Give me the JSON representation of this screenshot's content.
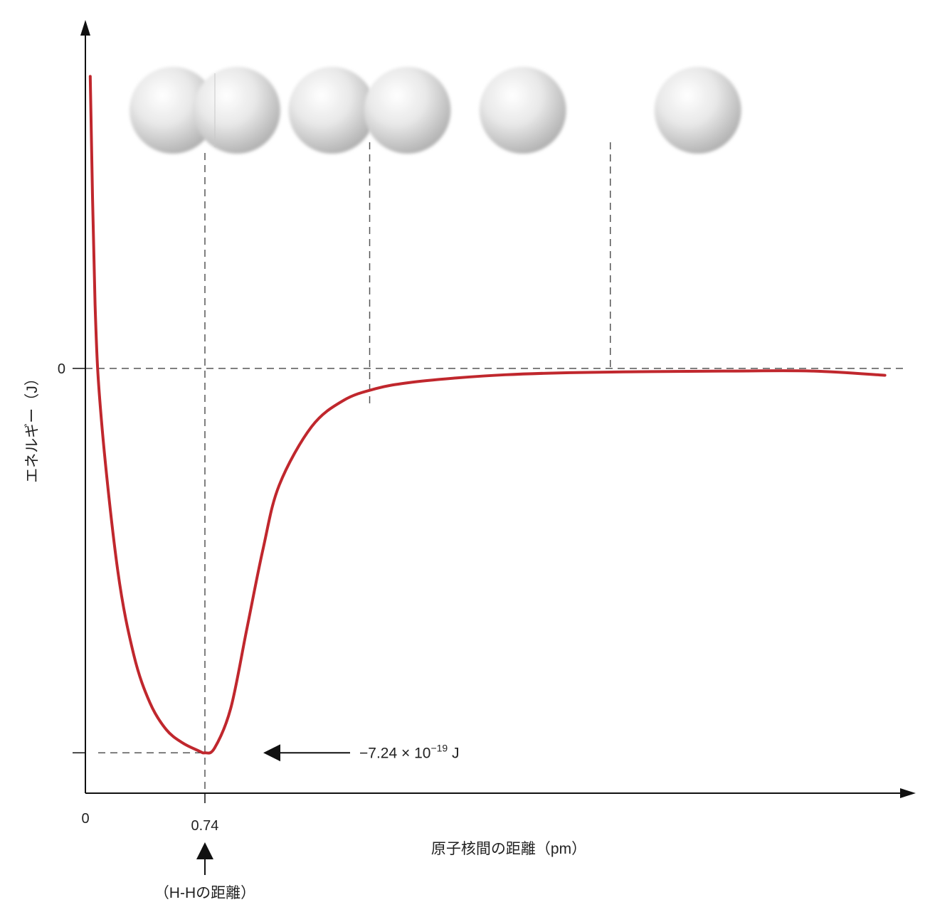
{
  "chart_data": {
    "type": "line",
    "title": "",
    "xlabel": "原子核間の距離（pm）",
    "ylabel": "エネルギー（J）",
    "x_ticks": [
      "0",
      "0.74"
    ],
    "y_ticks": [
      "0"
    ],
    "xlim": [
      0,
      5.0
    ],
    "ylim": [
      -8.0,
      6.0
    ],
    "grid": false,
    "legend": "none",
    "series": [
      {
        "color": "#c0272d",
        "x": [
          0.03,
          0.06,
          0.1,
          0.2,
          0.3,
          0.4,
          0.5,
          0.6,
          0.7,
          0.74,
          0.8,
          0.9,
          1.0,
          1.1,
          1.2,
          1.4,
          1.6,
          1.8,
          2.0,
          2.3,
          2.6,
          3.0,
          3.5,
          4.0,
          4.5,
          4.95
        ],
        "y": [
          5.5,
          1.2,
          -1.0,
          -3.8,
          -5.4,
          -6.3,
          -6.8,
          -7.05,
          -7.2,
          -7.24,
          -7.15,
          -6.4,
          -4.9,
          -3.4,
          -2.2,
          -1.1,
          -0.6,
          -0.38,
          -0.27,
          -0.18,
          -0.12,
          -0.08,
          -0.06,
          -0.05,
          -0.05,
          -0.13
        ]
      }
    ],
    "guide_lines": {
      "zero_line_y": 0,
      "minimum": {
        "x": 0.74,
        "y": -7.24
      },
      "verticals_x": [
        0.74,
        1.76,
        3.25
      ]
    },
    "annotations": {
      "minimum_label_main": "−7.24 × 10",
      "minimum_label_exp": "−19",
      "minimum_label_unit": " J",
      "bond_length_label": "（H-Hの距離）"
    },
    "atom_pairs": [
      {
        "state": "overlap",
        "center_x": 0.74
      },
      {
        "state": "touching",
        "center_x": 1.76
      },
      {
        "state": "separated",
        "center_x": 3.25
      }
    ],
    "atom_color": "#d9d9d9",
    "line_color": "#c0272d"
  }
}
